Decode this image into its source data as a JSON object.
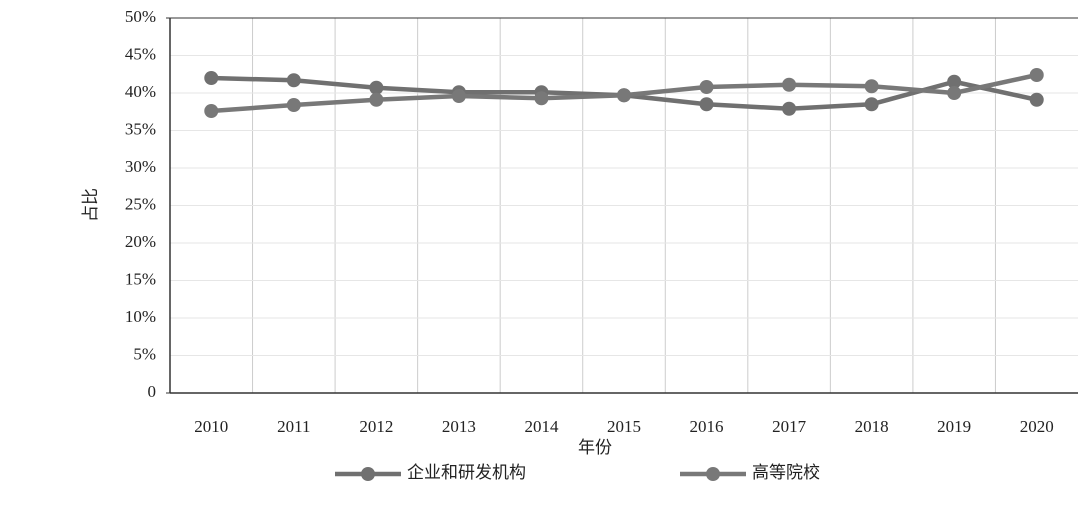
{
  "chart_data": {
    "type": "line",
    "y_label": "占比",
    "x_label": "年份",
    "categories": [
      "2010",
      "2011",
      "2012",
      "2013",
      "2014",
      "2015",
      "2016",
      "2017",
      "2018",
      "2019",
      "2020"
    ],
    "series": [
      {
        "name": "企业和研发机构",
        "color": "#707070",
        "values": [
          42.0,
          41.7,
          40.7,
          40.1,
          40.1,
          39.7,
          38.5,
          37.9,
          38.5,
          41.5,
          39.1
        ]
      },
      {
        "name": "高等院校",
        "color": "#787878",
        "values": [
          37.6,
          38.4,
          39.1,
          39.6,
          39.3,
          39.7,
          40.8,
          41.1,
          40.9,
          40.0,
          42.4
        ]
      }
    ],
    "ylim": [
      0,
      50
    ],
    "yticks": [
      0,
      {
        "value": 5,
        "label": "5%"
      },
      {
        "value": 10,
        "label": "10%"
      },
      {
        "value": 15,
        "label": "15%"
      },
      {
        "value": 20,
        "label": "20%"
      },
      {
        "value": 25,
        "label": "25%"
      },
      {
        "value": 30,
        "label": "30%"
      },
      {
        "value": 35,
        "label": "35%"
      },
      {
        "value": 40,
        "label": "40%"
      },
      {
        "value": 45,
        "label": "45%"
      },
      {
        "value": 50,
        "label": "50%"
      }
    ],
    "grid": true
  }
}
